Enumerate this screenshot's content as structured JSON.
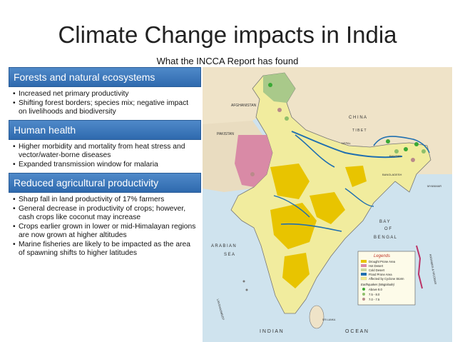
{
  "title": "Climate Change impacts in India",
  "subtitle": "What the INCCA Report has found",
  "sections": [
    {
      "header": "Forests and natural ecosystems",
      "bullets": [
        "Increased net primary productivity",
        "Shifting forest borders; species mix; negative impact on livelihoods and biodiversity"
      ]
    },
    {
      "header": "Human health",
      "bullets": [
        "Higher morbidity and mortality from heat stress and vector/water-borne diseases",
        "Expanded transmission window for malaria"
      ]
    },
    {
      "header": "Reduced agricultural productivity",
      "bullets": [
        "Sharp fall in land productivity of 17% farmers",
        "General decrease in productivity of crops; however, cash crops like coconut may increase",
        "Crops earlier grown in lower or mid-Himalayan regions are now grown at higher altitudes",
        "Marine fisheries are likely to be impacted as the area of spawning shifts to higher latitudes"
      ]
    }
  ],
  "map": {
    "labels": {
      "afghanistan": "AFGHANISTAN",
      "pakistan": "PAKISTAN",
      "china": "C H I N A",
      "tibet": "T I B E T",
      "nepal": "NEPAL",
      "bhutan": "BHUTAN",
      "bangladesh": "BANGLADESH",
      "myanmar": "MYANMAR",
      "bay1": "B A Y",
      "bay2": "O F",
      "bay3": "B E N G A L",
      "arabian1": "A R A B I A N",
      "arabian2": "S E A",
      "indian_ocean": "I N D I A N",
      "ocean": "O C E A N",
      "lakshadweep": "LAKSHADWEEP",
      "andaman": "ANDAMAN & NICOBAR",
      "sri_lanka": "SRI LANKA"
    },
    "legend": {
      "title": "Legends",
      "items": [
        {
          "label": "Drought Prone Area",
          "color": "#e8c400"
        },
        {
          "label": "Hot Desert",
          "color": "#d98aa6"
        },
        {
          "label": "Cold Desert",
          "color": "#c9d6a0"
        },
        {
          "label": "Flood Prone Area",
          "color": "#1f6fb0"
        },
        {
          "label": "Affected by Cyclone Storm",
          "color": "#f4eb8a"
        }
      ],
      "quake_title": "Earthquakes (Magnitude)",
      "quakes": [
        {
          "label": "Above 8.0",
          "color": "#3aa935"
        },
        {
          "label": "7.5 - 8.0",
          "color": "#8fbf6a"
        },
        {
          "label": "7.0 - 7.5",
          "color": "#b98a8a"
        }
      ]
    },
    "colors": {
      "sea": "#cfe3ee",
      "land": "#f1ec9e",
      "drought": "#e8c400",
      "desert": "#d98aa6",
      "cold": "#a9c98a",
      "river": "#1f6fb0"
    }
  }
}
